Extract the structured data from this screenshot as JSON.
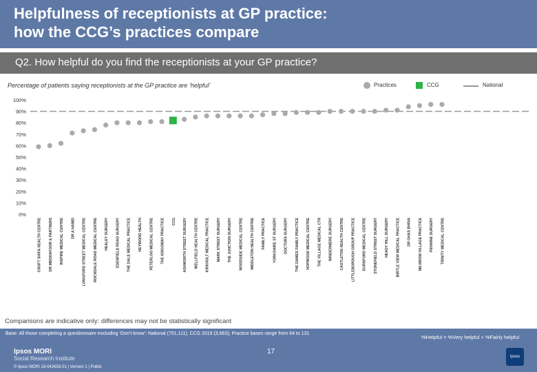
{
  "header": {
    "title_line1": "Helpfulness of receptionists at GP practice:",
    "title_line2": "how the CCG’s practices compare"
  },
  "question": "Q2. How helpful do you find the receptionists at your GP practice?",
  "subtitle": "Percentage of patients saying receptionists at the GP practice are ‘helpful’",
  "legend": {
    "practices": "Practices",
    "ccg": "CCG",
    "national": "National"
  },
  "colors": {
    "practice": "#aaaaaa",
    "ccg": "#2db34a",
    "national": "#999999",
    "header": "#5f79a7",
    "question_bar": "#6f6f6f"
  },
  "note": "Comparisons are indicative only: differences may not be statistically significant",
  "footer": {
    "base": "Base: All those completing a questionnaire excluding ‘Don’t know’: National (751,111); CCG 2019 (3,663); Practice bases range from 64 to 131",
    "formula": "%Helpful = %Very helpful + %Fairly helpful",
    "page_number": "17",
    "brand": "Ipsos MORI",
    "brand_sub": "Social Research Institute",
    "copyright": "© Ipsos MORI    18-042653-01 | Version 1 | Public",
    "logo_text": "Ipsos"
  },
  "chart_data": {
    "type": "scatter",
    "ylim": [
      0,
      100
    ],
    "yticks": [
      "0%",
      "10%",
      "20%",
      "30%",
      "40%",
      "50%",
      "60%",
      "70%",
      "80%",
      "90%",
      "100%"
    ],
    "national": 90,
    "ccg_category": "CCG",
    "categories": [
      "CROFT SHIFA HEALTH CENTRE",
      "DR MBOHAFOOR & PARTNERS",
      "INSPIRE MEDICAL CENTRE",
      "DR A HAMID",
      "LONGFORD STREET MEDICAL CENTRE",
      "ROCHDALE ROAD MEDICAL CENTRE",
      "HEALEY SURGERY",
      "EDENFIELD ROAD SURGERY",
      "THE DALE MEDICAL PRACTICE",
      "HEYWOOD HEALTH",
      "PETERLOO MEDICAL CENTRE",
      "THE KINGSWAY PRACTICE",
      "CCG",
      "ASHWORTH STREET SURGERY",
      "WELLFIELD HEALTH CENTRE",
      "KIRKHOLT MEDICAL PRACTICE",
      "MARK STREET SURGERY",
      "THE JUNCTION SURGERY",
      "WOODSIDE MEDICAL CENTRE",
      "MIDDLETON HEALTH CENTRE",
      "FAMILY PRACTICE",
      "YORKSHIRE ST SURGERY",
      "DOCTORS SURGERY",
      "THE DAWES FAMILY PRACTICE",
      "HOPWOOD MEDICAL CENTRE",
      "THE VILLAGE MEDICAL CTR",
      "WINDERMERE SURGERY",
      "CASTLETON HEALTH CENTRE",
      "LITTLEBOROUGH GROUP PRACTICE",
      "DURNFORD MEDICAL CENTRE",
      "STONEFIELD STREET SURGERY",
      "HEADY HILL SURGERY",
      "BIRTLE VIEW MEDICAL PRACTICE",
      "DR GHAS BHINA",
      "MILNROW VILLAGE PRACTICE",
      "PENNINE SURGERY",
      "TRINITY MEDICAL CENTRE"
    ],
    "values": [
      59,
      60,
      62,
      71,
      73,
      74,
      78,
      80,
      80,
      80,
      81,
      81,
      82,
      83,
      85,
      86,
      86,
      86,
      86,
      86,
      87,
      88,
      88,
      89,
      89,
      89,
      90,
      90,
      90,
      90,
      90,
      91,
      91,
      94,
      95,
      96,
      96
    ]
  }
}
